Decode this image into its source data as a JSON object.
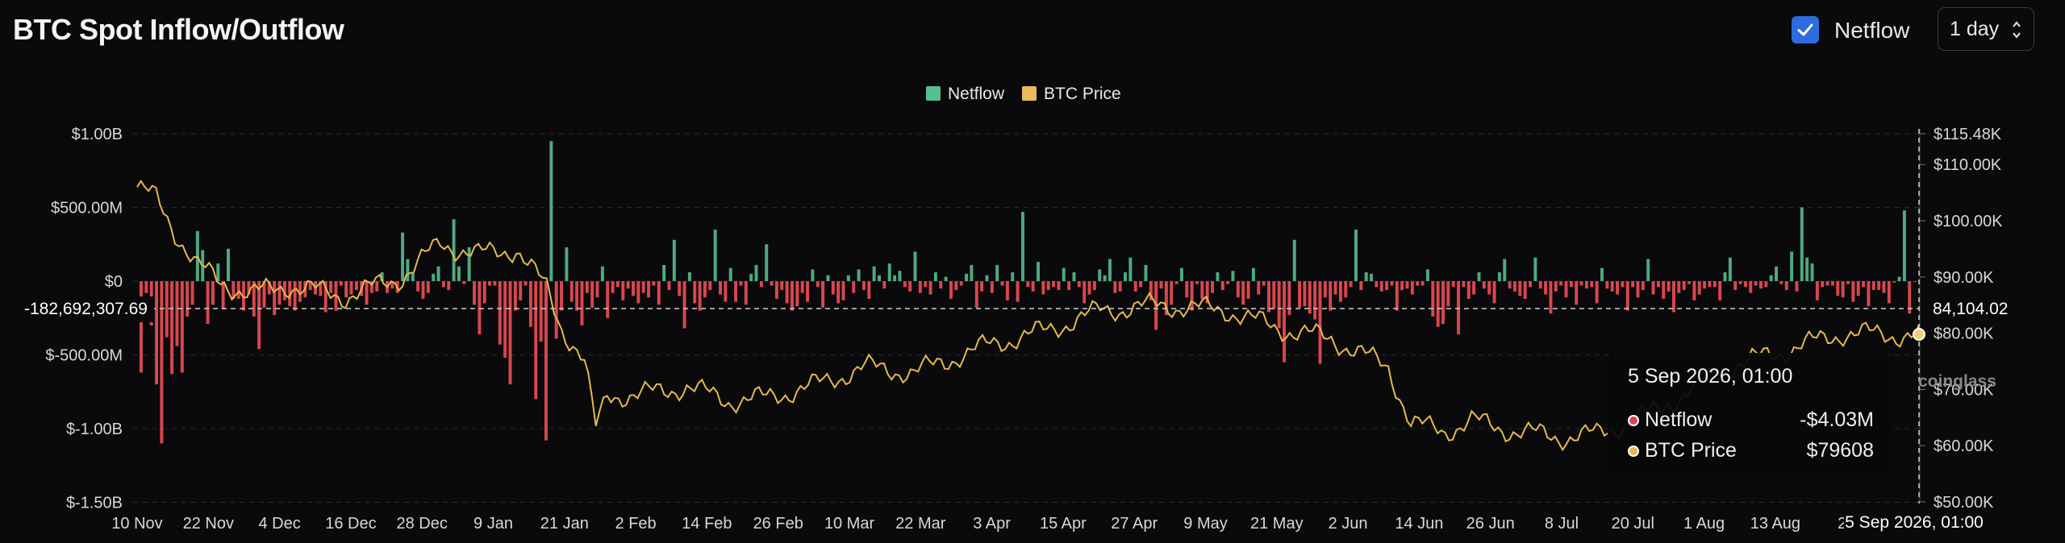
{
  "header": {
    "title": "BTC Spot Inflow/Outflow",
    "netflow_checkbox_label": "Netflow",
    "netflow_checked": true,
    "interval_value": "1 day"
  },
  "colors": {
    "accent": "#2e6bdc",
    "positive": "#4fa982",
    "negative": "#d9474e",
    "price": "#e4b94d",
    "background": "#0a0a0c"
  },
  "tooltip": {
    "title": "5 Sep 2026, 01:00",
    "rows": [
      {
        "label": "Netflow",
        "value": "-$4.03M",
        "color": "#d9474e"
      },
      {
        "label": "BTC Price",
        "value": "$79608",
        "color": "#e4b94d"
      }
    ]
  },
  "crosshair": {
    "y_left_label": "-182,692,307.69",
    "y_right_label": "84,104.02",
    "x_label": "5 Sep 2026, 01:00"
  },
  "watermark": "coinglass",
  "chart_data": {
    "type": "bar",
    "title": "BTC Spot Inflow/Outflow",
    "legend": [
      "Netflow",
      "BTC Price"
    ],
    "legend_position": "top-center",
    "grid": true,
    "x_ticks": [
      "10 Nov",
      "22 Nov",
      "4 Dec",
      "16 Dec",
      "28 Dec",
      "9 Jan",
      "21 Jan",
      "2 Feb",
      "14 Feb",
      "26 Feb",
      "10 Mar",
      "22 Mar",
      "3 Apr",
      "15 Apr",
      "27 Apr",
      "9 May",
      "21 May",
      "2 Jun",
      "14 Jun",
      "26 Jun",
      "8 Jul",
      "20 Jul",
      "1 Aug",
      "13 Aug",
      "25"
    ],
    "y_left_ticks": [
      "$1.00B",
      "$500.00M",
      "$0",
      "$-500.00M",
      "$-1.00B",
      "$-1.50B"
    ],
    "y_left_range": [
      -1500000000,
      1000000000
    ],
    "y_right_ticks": [
      "$115.48K",
      "$110.00K",
      "$100.00K",
      "$90.00K",
      "$80.00K",
      "$70.00K",
      "$60.00K",
      "$50.00K"
    ],
    "y_right_range": [
      50000,
      115480
    ],
    "netflow_series_name": "Netflow",
    "netflow_unit": "USD millions",
    "netflow": [
      -620,
      -80,
      -300,
      -700,
      -1100,
      -380,
      -630,
      -440,
      -620,
      -240,
      -160,
      340,
      210,
      -290,
      -160,
      120,
      -190,
      220,
      -120,
      -120,
      -200,
      -90,
      -240,
      -460,
      -180,
      -90,
      -230,
      -160,
      -130,
      -170,
      -200,
      -140,
      -110,
      -60,
      -90,
      -100,
      -210,
      -80,
      -200,
      -30,
      -110,
      -90,
      -60,
      -100,
      -160,
      -80,
      -70,
      60,
      -80,
      -50,
      -80,
      330,
      150,
      60,
      -70,
      -120,
      -80,
      50,
      100,
      -40,
      -60,
      420,
      100,
      -20,
      230,
      -160,
      -360,
      -150,
      -30,
      -30,
      -430,
      -520,
      -700,
      -200,
      -130,
      -30,
      -310,
      -800,
      -410,
      -1080,
      950,
      -390,
      -200,
      230,
      -140,
      -200,
      -300,
      -80,
      -180,
      -110,
      100,
      -250,
      -80,
      -40,
      -130,
      -50,
      -100,
      -150,
      -80,
      -110,
      -30,
      -160,
      110,
      -60,
      280,
      -100,
      -320,
      60,
      -150,
      -200,
      -110,
      -60,
      350,
      -90,
      -140,
      90,
      -140,
      -30,
      -160,
      50,
      110,
      -40,
      250,
      -30,
      -120,
      -60,
      -150,
      -200,
      -170,
      -80,
      -140,
      80,
      -40,
      -180,
      40,
      -90,
      -150,
      -130,
      40,
      -80,
      80,
      -60,
      -120,
      100,
      40,
      -50,
      120,
      40,
      70,
      -40,
      -70,
      200,
      -80,
      -40,
      -90,
      60,
      -50,
      30,
      -120,
      -60,
      -30,
      50,
      110,
      -180,
      -70,
      40,
      -80,
      110,
      -30,
      -130,
      60,
      -140,
      470,
      -40,
      -70,
      130,
      -90,
      -60,
      -40,
      -60,
      90,
      -60,
      60,
      -40,
      -150,
      -90,
      -60,
      80,
      40,
      150,
      -80,
      -70,
      60,
      160,
      -70,
      -40,
      110,
      -130,
      -330,
      -50,
      -230,
      -160,
      -20,
      90,
      -110,
      -200,
      -20,
      -120,
      -150,
      -80,
      60,
      -60,
      -20,
      70,
      -110,
      -160,
      -120,
      90,
      -90,
      -30,
      -210,
      -190,
      -320,
      -550,
      -230,
      280,
      -180,
      -170,
      -220,
      -260,
      -560,
      -110,
      -200,
      -90,
      -140,
      -110,
      -40,
      350,
      -60,
      60,
      50,
      -40,
      -70,
      -60,
      -30,
      -200,
      -60,
      -50,
      -90,
      -30,
      -30,
      80,
      -240,
      -310,
      -290,
      -170,
      -40,
      -360,
      -40,
      -120,
      -90,
      60,
      -50,
      -90,
      -150,
      60,
      150,
      -50,
      -70,
      -100,
      -120,
      -40,
      160,
      -50,
      -90,
      -220,
      -70,
      -30,
      -110,
      -40,
      -160,
      -30,
      -50,
      -40,
      -150,
      90,
      -50,
      -70,
      -90,
      -40,
      -200,
      -40,
      -110,
      -60,
      150,
      -90,
      -40,
      -120,
      -70,
      -210,
      -80,
      -60,
      -20,
      -130,
      -90,
      -50,
      -40,
      -40,
      -130,
      60,
      160,
      -60,
      -20,
      -40,
      -80,
      -30,
      -50,
      -40,
      40,
      100,
      -20,
      -60,
      200,
      -70,
      500,
      160,
      120,
      -130,
      -40,
      -30,
      -30,
      -100,
      -110,
      -20,
      -140,
      -100,
      -40,
      -170,
      -60,
      -60,
      -80,
      -150,
      -10,
      30,
      480,
      -220,
      -4
    ]
  }
}
